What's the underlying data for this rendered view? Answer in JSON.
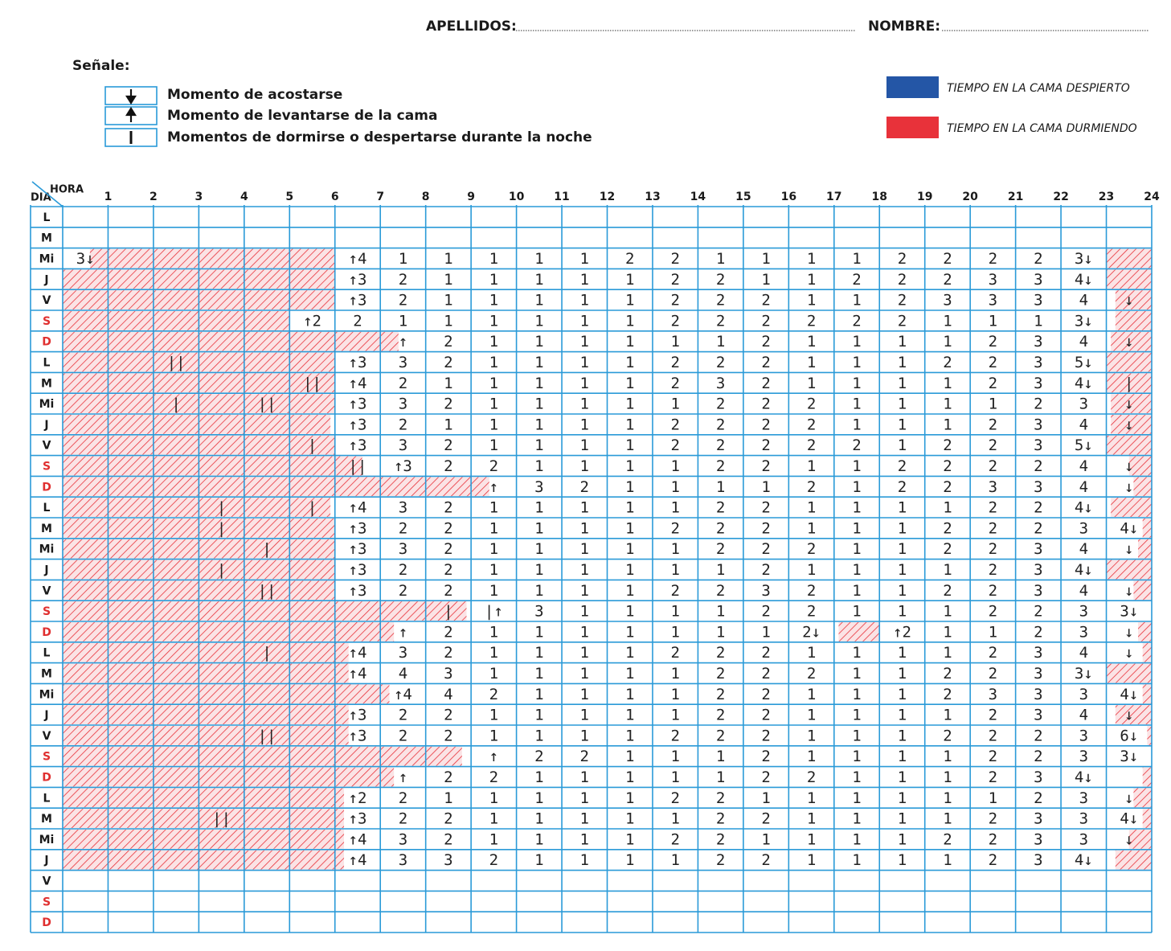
{
  "header": {
    "surname_label": "APELLIDOS:",
    "name_label": "NOMBRE:"
  },
  "legend": {
    "title": "Señale:",
    "items": [
      "Momento de acostarse",
      "Momento de levantarse de la cama",
      "Momentos de dormirse o despertarse durante la noche"
    ],
    "colors": [
      {
        "label": "TIEMPO EN LA CAMA DESPIERTO",
        "color": "#2456a6"
      },
      {
        "label": "TIEMPO EN LA CAMA DURMIENDO",
        "color": "#e8323a"
      }
    ]
  },
  "grid": {
    "day_header": "DIA",
    "hour_header": "HORA",
    "hours": [
      1,
      2,
      3,
      4,
      5,
      6,
      7,
      8,
      9,
      10,
      11,
      12,
      13,
      14,
      15,
      16,
      17,
      18,
      19,
      20,
      21,
      22,
      23,
      24
    ],
    "rows": [
      {
        "day": "L",
        "color": "#1a1a1a"
      },
      {
        "day": "M",
        "color": "#1a1a1a"
      },
      {
        "day": "Mi",
        "color": "#1a1a1a",
        "sleep": [
          [
            0.6,
            6
          ],
          [
            23,
            24
          ]
        ],
        "cells": [
          "3↓",
          null,
          null,
          null,
          null,
          null,
          "↑4",
          "1",
          "1",
          "1",
          "1",
          "1",
          "2",
          "2",
          "1",
          "1",
          "1",
          "1",
          "2",
          "2",
          "2",
          "2",
          "3↓",
          null
        ]
      },
      {
        "day": "J",
        "color": "#1a1a1a",
        "sleep": [
          [
            0,
            6
          ],
          [
            23,
            24
          ]
        ],
        "cells": [
          null,
          null,
          null,
          null,
          null,
          null,
          "↑3",
          "2",
          "1",
          "1",
          "1",
          "1",
          "1",
          "2",
          "2",
          "1",
          "1",
          "2",
          "2",
          "2",
          "3",
          "3",
          "4↓",
          null
        ]
      },
      {
        "day": "V",
        "color": "#1a1a1a",
        "sleep": [
          [
            0,
            6
          ],
          [
            23.2,
            24
          ]
        ],
        "cells": [
          null,
          null,
          null,
          null,
          null,
          null,
          "↑3",
          "2",
          "1",
          "1",
          "1",
          "1",
          "1",
          "2",
          "2",
          "2",
          "1",
          "1",
          "2",
          "3",
          "3",
          "3",
          "4",
          "↓"
        ]
      },
      {
        "day": "S",
        "color": "#e03030",
        "sleep": [
          [
            0,
            5
          ],
          [
            23.2,
            24
          ]
        ],
        "cells": [
          null,
          null,
          null,
          null,
          null,
          "↑2",
          "2",
          "1",
          "1",
          "1",
          "1",
          "1",
          "1",
          "2",
          "2",
          "2",
          "2",
          "2",
          "2",
          "1",
          "1",
          "1",
          "3↓",
          null
        ]
      },
      {
        "day": "D",
        "color": "#e03030",
        "sleep": [
          [
            0,
            7.4
          ],
          [
            23.1,
            24
          ]
        ],
        "cells": [
          null,
          null,
          null,
          null,
          null,
          null,
          null,
          "↑",
          "2",
          "1",
          "1",
          "1",
          "1",
          "1",
          "1",
          "2",
          "1",
          "1",
          "1",
          "1",
          "2",
          "3",
          "4",
          "↓"
        ]
      },
      {
        "day": "L",
        "color": "#1a1a1a",
        "sleep": [
          [
            0,
            6
          ],
          [
            23,
            24
          ]
        ],
        "cells": [
          null,
          null,
          "||",
          null,
          null,
          null,
          "↑3",
          "3",
          "2",
          "1",
          "1",
          "1",
          "1",
          "2",
          "2",
          "2",
          "1",
          "1",
          "1",
          "2",
          "2",
          "3",
          "5↓",
          null
        ]
      },
      {
        "day": "M",
        "color": "#1a1a1a",
        "sleep": [
          [
            0,
            6
          ],
          [
            23,
            24
          ]
        ],
        "cells": [
          null,
          null,
          null,
          null,
          null,
          "||",
          "↑4",
          "2",
          "1",
          "1",
          "1",
          "1",
          "1",
          "2",
          "3",
          "2",
          "1",
          "1",
          "1",
          "1",
          "2",
          "3",
          "4↓",
          "|"
        ]
      },
      {
        "day": "Mi",
        "color": "#1a1a1a",
        "sleep": [
          [
            0,
            6
          ],
          [
            23.1,
            24
          ]
        ],
        "cells": [
          null,
          null,
          "|",
          null,
          "||",
          null,
          "↑3",
          "3",
          "2",
          "1",
          "1",
          "1",
          "1",
          "1",
          "2",
          "2",
          "2",
          "1",
          "1",
          "1",
          "1",
          "2",
          "3",
          "↓"
        ]
      },
      {
        "day": "J",
        "color": "#1a1a1a",
        "sleep": [
          [
            0,
            5.9
          ],
          [
            23.1,
            24
          ]
        ],
        "cells": [
          null,
          null,
          null,
          null,
          null,
          null,
          "↑3",
          "2",
          "1",
          "1",
          "1",
          "1",
          "1",
          "2",
          "2",
          "2",
          "2",
          "1",
          "1",
          "1",
          "2",
          "3",
          "4",
          "↓"
        ]
      },
      {
        "day": "V",
        "color": "#1a1a1a",
        "sleep": [
          [
            0,
            6
          ],
          [
            23,
            24
          ]
        ],
        "cells": [
          null,
          null,
          null,
          null,
          null,
          "|",
          "↑3",
          "3",
          "2",
          "1",
          "1",
          "1",
          "1",
          "2",
          "2",
          "2",
          "2",
          "2",
          "1",
          "2",
          "2",
          "3",
          "5↓",
          null
        ]
      },
      {
        "day": "S",
        "color": "#e03030",
        "sleep": [
          [
            0,
            6.6
          ],
          [
            23.5,
            24
          ]
        ],
        "cells": [
          null,
          null,
          null,
          null,
          null,
          null,
          "||",
          "↑3",
          "2",
          "2",
          "1",
          "1",
          "1",
          "1",
          "2",
          "2",
          "1",
          "1",
          "2",
          "2",
          "2",
          "2",
          "4",
          "↓"
        ]
      },
      {
        "day": "D",
        "color": "#e03030",
        "sleep": [
          [
            0,
            9.4
          ],
          [
            23.6,
            24
          ]
        ],
        "cells": [
          null,
          null,
          null,
          null,
          null,
          null,
          null,
          null,
          null,
          "↑",
          "3",
          "2",
          "1",
          "1",
          "1",
          "1",
          "2",
          "1",
          "2",
          "2",
          "3",
          "3",
          "4",
          "↓"
        ]
      },
      {
        "day": "L",
        "color": "#1a1a1a",
        "sleep": [
          [
            0,
            5.9
          ],
          [
            23.1,
            24
          ]
        ],
        "cells": [
          null,
          null,
          null,
          "|",
          null,
          "|",
          "↑4",
          "3",
          "2",
          "1",
          "1",
          "1",
          "1",
          "1",
          "2",
          "2",
          "1",
          "1",
          "1",
          "1",
          "2",
          "2",
          "4↓",
          null
        ]
      },
      {
        "day": "M",
        "color": "#1a1a1a",
        "sleep": [
          [
            0,
            6
          ],
          [
            23.8,
            24
          ]
        ],
        "cells": [
          null,
          null,
          null,
          "|",
          null,
          null,
          "↑3",
          "2",
          "2",
          "1",
          "1",
          "1",
          "1",
          "2",
          "2",
          "2",
          "1",
          "1",
          "1",
          "2",
          "2",
          "2",
          "3",
          "4↓"
        ]
      },
      {
        "day": "Mi",
        "color": "#1a1a1a",
        "sleep": [
          [
            0,
            6
          ],
          [
            23.7,
            24
          ]
        ],
        "cells": [
          null,
          null,
          null,
          null,
          "|",
          null,
          "↑3",
          "3",
          "2",
          "1",
          "1",
          "1",
          "1",
          "1",
          "2",
          "2",
          "2",
          "1",
          "1",
          "2",
          "2",
          "3",
          "4",
          "↓"
        ]
      },
      {
        "day": "J",
        "color": "#1a1a1a",
        "sleep": [
          [
            0,
            6
          ],
          [
            23,
            24
          ]
        ],
        "cells": [
          null,
          null,
          null,
          "|",
          null,
          null,
          "↑3",
          "2",
          "2",
          "1",
          "1",
          "1",
          "1",
          "1",
          "1",
          "2",
          "1",
          "1",
          "1",
          "1",
          "2",
          "3",
          "4↓",
          null
        ]
      },
      {
        "day": "V",
        "color": "#1a1a1a",
        "sleep": [
          [
            0,
            6
          ],
          [
            23.6,
            24
          ]
        ],
        "cells": [
          null,
          null,
          null,
          null,
          "||",
          null,
          "↑3",
          "2",
          "2",
          "1",
          "1",
          "1",
          "1",
          "2",
          "2",
          "3",
          "2",
          "1",
          "1",
          "2",
          "2",
          "3",
          "4",
          "↓"
        ]
      },
      {
        "day": "S",
        "color": "#e03030",
        "sleep": [
          [
            0,
            8.9
          ]
        ],
        "cells": [
          null,
          null,
          null,
          null,
          null,
          null,
          null,
          null,
          "|",
          "|↑",
          "3",
          "1",
          "1",
          "1",
          "1",
          "2",
          "2",
          "1",
          "1",
          "1",
          "2",
          "2",
          "3",
          "3↓"
        ]
      },
      {
        "day": "D",
        "color": "#e03030",
        "sleep": [
          [
            0,
            7.3
          ],
          [
            17.1,
            18
          ],
          [
            23.7,
            24
          ]
        ],
        "cells": [
          null,
          null,
          null,
          null,
          null,
          null,
          null,
          "↑",
          "2",
          "1",
          "1",
          "1",
          "1",
          "1",
          "1",
          "1",
          "2↓",
          null,
          "↑2",
          "1",
          "1",
          "2",
          "3",
          "↓"
        ]
      },
      {
        "day": "L",
        "color": "#1a1a1a",
        "sleep": [
          [
            0,
            6.3
          ],
          [
            23.8,
            24
          ]
        ],
        "cells": [
          null,
          null,
          null,
          null,
          "|",
          null,
          "↑4",
          "3",
          "2",
          "1",
          "1",
          "1",
          "1",
          "2",
          "2",
          "2",
          "1",
          "1",
          "1",
          "1",
          "2",
          "3",
          "4",
          "↓"
        ]
      },
      {
        "day": "M",
        "color": "#1a1a1a",
        "sleep": [
          [
            0,
            6.3
          ],
          [
            23,
            24
          ]
        ],
        "cells": [
          null,
          null,
          null,
          null,
          null,
          null,
          "↑4",
          "4",
          "3",
          "1",
          "1",
          "1",
          "1",
          "1",
          "2",
          "2",
          "2",
          "1",
          "1",
          "2",
          "2",
          "3",
          "3↓",
          null
        ]
      },
      {
        "day": "Mi",
        "color": "#1a1a1a",
        "sleep": [
          [
            0,
            7.2
          ],
          [
            23.8,
            24
          ]
        ],
        "cells": [
          null,
          null,
          null,
          null,
          null,
          null,
          null,
          "↑4",
          "4",
          "2",
          "1",
          "1",
          "1",
          "1",
          "2",
          "2",
          "1",
          "1",
          "1",
          "2",
          "3",
          "3",
          "3",
          "4↓"
        ]
      },
      {
        "day": "J",
        "color": "#1a1a1a",
        "sleep": [
          [
            0,
            6.3
          ],
          [
            23.2,
            24
          ]
        ],
        "cells": [
          null,
          null,
          null,
          null,
          null,
          null,
          "↑3",
          "2",
          "2",
          "1",
          "1",
          "1",
          "1",
          "1",
          "2",
          "2",
          "1",
          "1",
          "1",
          "1",
          "2",
          "3",
          "4",
          "↓"
        ]
      },
      {
        "day": "V",
        "color": "#1a1a1a",
        "sleep": [
          [
            0,
            6.3
          ],
          [
            23.9,
            24
          ]
        ],
        "cells": [
          null,
          null,
          null,
          null,
          "||",
          null,
          "↑3",
          "2",
          "2",
          "1",
          "1",
          "1",
          "1",
          "2",
          "2",
          "2",
          "1",
          "1",
          "1",
          "2",
          "2",
          "2",
          "3",
          "6↓"
        ]
      },
      {
        "day": "S",
        "color": "#e03030",
        "sleep": [
          [
            0,
            8.8
          ]
        ],
        "cells": [
          null,
          null,
          null,
          null,
          null,
          null,
          null,
          null,
          null,
          "↑",
          "2",
          "2",
          "1",
          "1",
          "1",
          "2",
          "1",
          "1",
          "1",
          "1",
          "2",
          "2",
          "3",
          "3↓"
        ]
      },
      {
        "day": "D",
        "color": "#e03030",
        "sleep": [
          [
            0,
            7.3
          ],
          [
            23.8,
            24
          ]
        ],
        "cells": [
          null,
          null,
          null,
          null,
          null,
          null,
          null,
          "↑",
          "2",
          "2",
          "1",
          "1",
          "1",
          "1",
          "1",
          "2",
          "2",
          "1",
          "1",
          "1",
          "2",
          "3",
          "4↓",
          null
        ]
      },
      {
        "day": "L",
        "color": "#1a1a1a",
        "sleep": [
          [
            0,
            6.2
          ],
          [
            23.6,
            24
          ]
        ],
        "cells": [
          null,
          null,
          null,
          null,
          null,
          null,
          "↑2",
          "2",
          "1",
          "1",
          "1",
          "1",
          "1",
          "2",
          "2",
          "1",
          "1",
          "1",
          "1",
          "1",
          "1",
          "2",
          "3",
          "↓"
        ]
      },
      {
        "day": "M",
        "color": "#1a1a1a",
        "sleep": [
          [
            0,
            6.2
          ],
          [
            23.8,
            24
          ]
        ],
        "cells": [
          null,
          null,
          null,
          "||",
          null,
          null,
          "↑3",
          "2",
          "2",
          "1",
          "1",
          "1",
          "1",
          "1",
          "2",
          "2",
          "1",
          "1",
          "1",
          "1",
          "2",
          "3",
          "3",
          "4↓"
        ]
      },
      {
        "day": "Mi",
        "color": "#1a1a1a",
        "sleep": [
          [
            0,
            6.2
          ],
          [
            23.5,
            24
          ]
        ],
        "cells": [
          null,
          null,
          null,
          null,
          null,
          null,
          "↑4",
          "3",
          "2",
          "1",
          "1",
          "1",
          "1",
          "2",
          "2",
          "1",
          "1",
          "1",
          "1",
          "2",
          "2",
          "3",
          "3",
          "↓"
        ]
      },
      {
        "day": "J",
        "color": "#1a1a1a",
        "sleep": [
          [
            0,
            6.2
          ],
          [
            23.2,
            24
          ]
        ],
        "cells": [
          null,
          null,
          null,
          null,
          null,
          null,
          "↑4",
          "3",
          "3",
          "2",
          "1",
          "1",
          "1",
          "1",
          "2",
          "2",
          "1",
          "1",
          "1",
          "1",
          "2",
          "3",
          "4↓",
          null
        ]
      },
      {
        "day": "V",
        "color": "#1a1a1a"
      },
      {
        "day": "S",
        "color": "#e03030"
      },
      {
        "day": "D",
        "color": "#e03030"
      }
    ]
  }
}
